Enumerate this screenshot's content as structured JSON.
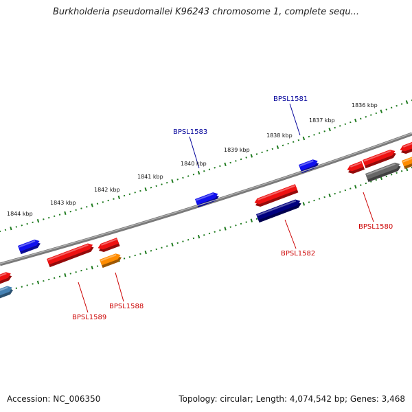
{
  "title": "Burkholderia pseudomallei K96243 chromosome 1, complete sequ...",
  "footer": {
    "accession": "Accession: NC_006350",
    "summary": "Topology: circular; Length: 4,074,542 bp; Genes: 3,468"
  },
  "colors": {
    "backbone": "#7a7a7a",
    "ruler": "#1e7a1e",
    "gene_red": "#ee1111",
    "gene_blue": "#1010ee",
    "gene_navy": "#000080",
    "gene_orange": "#ff8c00",
    "gene_gray": "#666666",
    "gene_steel": "#4682b4",
    "label_red": "#cc0000",
    "label_blue": "#000099"
  },
  "ruler_labels": [
    "1844 kbp",
    "1843 kbp",
    "1842 kbp",
    "1841 kbp",
    "1840 kbp",
    "1839 kbp",
    "1838 kbp",
    "1837 kbp",
    "1836 kbp"
  ],
  "gene_labels": [
    "BPSL1583",
    "BPSL1581",
    "BPSL1589",
    "BPSL1588",
    "BPSL1582",
    "BPSL1580"
  ]
}
